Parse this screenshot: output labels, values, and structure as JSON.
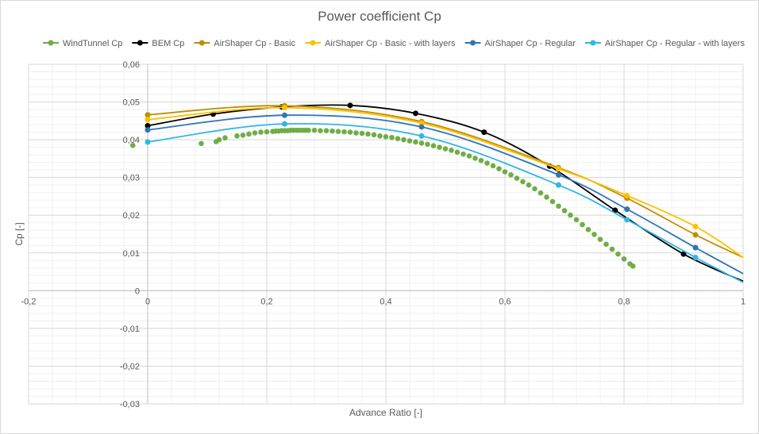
{
  "chart_data": {
    "type": "scatter",
    "title": "Power coefficient Cp",
    "xlabel": "Advance Ratio [-]",
    "ylabel": "Cp [-]",
    "xlim": [
      -0.2,
      1
    ],
    "ylim": [
      -0.03,
      0.06
    ],
    "x_ticks": [
      "-0,2",
      "0",
      "0,2",
      "0,4",
      "0,6",
      "0,8",
      "1"
    ],
    "y_ticks": [
      "0,06",
      "0,05",
      "0,04",
      "0,03",
      "0,02",
      "0,01",
      "0",
      "-0,01",
      "-0,02",
      "-0,03"
    ],
    "grid": true,
    "legend_position": "top",
    "series": [
      {
        "name": "WindTunnel Cp",
        "color": "#70ad47",
        "line": false,
        "x": [
          -0.025,
          0.09,
          0.115,
          0.12,
          0.13,
          0.15,
          0.16,
          0.17,
          0.18,
          0.19,
          0.2,
          0.21,
          0.215,
          0.22,
          0.225,
          0.23,
          0.235,
          0.24,
          0.245,
          0.25,
          0.255,
          0.26,
          0.265,
          0.27,
          0.28,
          0.29,
          0.3,
          0.31,
          0.32,
          0.33,
          0.34,
          0.35,
          0.36,
          0.37,
          0.38,
          0.39,
          0.4,
          0.41,
          0.42,
          0.43,
          0.44,
          0.45,
          0.46,
          0.47,
          0.48,
          0.49,
          0.5,
          0.51,
          0.52,
          0.53,
          0.54,
          0.55,
          0.56,
          0.57,
          0.58,
          0.59,
          0.6,
          0.61,
          0.62,
          0.63,
          0.64,
          0.65,
          0.66,
          0.67,
          0.68,
          0.69,
          0.7,
          0.71,
          0.72,
          0.73,
          0.74,
          0.75,
          0.76,
          0.77,
          0.78,
          0.79,
          0.8,
          0.81,
          0.815
        ],
        "y": [
          0.0385,
          0.039,
          0.0395,
          0.04,
          0.0405,
          0.041,
          0.0412,
          0.0415,
          0.0418,
          0.042,
          0.0421,
          0.0422,
          0.0423,
          0.0423,
          0.0424,
          0.0424,
          0.0424,
          0.0425,
          0.0425,
          0.0425,
          0.0425,
          0.0425,
          0.0425,
          0.0425,
          0.0425,
          0.0424,
          0.0424,
          0.0423,
          0.0422,
          0.0421,
          0.042,
          0.0418,
          0.0417,
          0.0415,
          0.0413,
          0.041,
          0.0408,
          0.0406,
          0.0403,
          0.04,
          0.0397,
          0.0394,
          0.0391,
          0.0388,
          0.0384,
          0.038,
          0.0376,
          0.0372,
          0.0367,
          0.0362,
          0.0357,
          0.0351,
          0.0345,
          0.0338,
          0.0331,
          0.0323,
          0.0315,
          0.0307,
          0.0298,
          0.0289,
          0.028,
          0.027,
          0.0259,
          0.0248,
          0.0236,
          0.0224,
          0.0212,
          0.02,
          0.0188,
          0.0175,
          0.0162,
          0.0149,
          0.0136,
          0.0123,
          0.011,
          0.0097,
          0.0084,
          0.0071,
          0.0065
        ]
      },
      {
        "name": "BEM Cp",
        "color": "#000000",
        "line": true,
        "x": [
          0.0,
          0.11,
          0.225,
          0.34,
          0.45,
          0.565,
          0.675,
          0.785,
          0.9
        ],
        "y": [
          0.0437,
          0.0468,
          0.0487,
          0.0491,
          0.047,
          0.042,
          0.033,
          0.0213,
          0.0097
        ],
        "curve_end": [
          1.0,
          0.0025
        ]
      },
      {
        "name": "AirShaper Cp - Basic",
        "color": "#bf9000",
        "line": true,
        "x": [
          0.0,
          0.23,
          0.46,
          0.69,
          0.805,
          0.92
        ],
        "y": [
          0.0466,
          0.049,
          0.0448,
          0.0326,
          0.0245,
          0.0148
        ],
        "curve_end": [
          1.0,
          0.0088
        ]
      },
      {
        "name": "AirShaper Cp - Basic - with layers",
        "color": "#ffc000",
        "line": true,
        "x": [
          0.0,
          0.23,
          0.46,
          0.69,
          0.805,
          0.92
        ],
        "y": [
          0.0453,
          0.0485,
          0.0444,
          0.0323,
          0.0252,
          0.017
        ],
        "curve_end": [
          1.0,
          0.0088
        ]
      },
      {
        "name": "AirShaper Cp - Regular",
        "color": "#2e75b6",
        "line": true,
        "x": [
          0.0,
          0.23,
          0.46,
          0.69,
          0.805,
          0.92
        ],
        "y": [
          0.0426,
          0.0465,
          0.0434,
          0.0307,
          0.0216,
          0.0114
        ],
        "curve_end": [
          1.0,
          0.0045
        ]
      },
      {
        "name": "AirShaper Cp - Regular - with layers",
        "color": "#31b6e7",
        "line": true,
        "x": [
          0.0,
          0.23,
          0.46,
          0.69,
          0.805,
          0.92
        ],
        "y": [
          0.0394,
          0.0442,
          0.041,
          0.028,
          0.0188,
          0.0088
        ],
        "curve_end": [
          1.0,
          0.0022
        ]
      }
    ]
  }
}
